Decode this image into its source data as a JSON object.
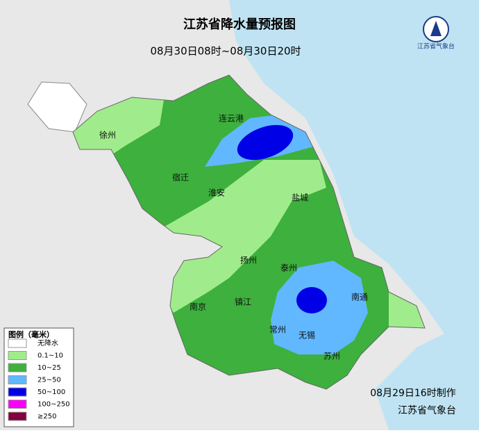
{
  "header": {
    "title": "江苏省降水量预报图",
    "subtitle": "08月30日08时~08月30日20时",
    "logo_text": "江苏省气象台"
  },
  "cities": [
    "徐州",
    "连云港",
    "宿迁",
    "淮安",
    "盐城",
    "扬州",
    "泰州",
    "南京",
    "镇江",
    "南通",
    "常州",
    "无锡",
    "苏州"
  ],
  "legend": {
    "title": "图例（毫米）",
    "items": [
      {
        "label": "无降水",
        "color": "#ffffff"
      },
      {
        "label": "0.1~10",
        "color": "#a0ec8c"
      },
      {
        "label": "10~25",
        "color": "#3db03d"
      },
      {
        "label": "25~50",
        "color": "#61b8ff"
      },
      {
        "label": "50~100",
        "color": "#0000e6"
      },
      {
        "label": "100~250",
        "color": "#fa00fa"
      },
      {
        "label": "≥250",
        "color": "#800040"
      }
    ]
  },
  "footer": {
    "issued": "08月29日16时制作",
    "agency": "江苏省气象台"
  }
}
